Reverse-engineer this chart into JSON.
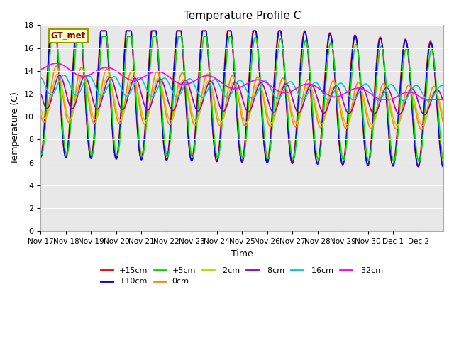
{
  "title": "Temperature Profile C",
  "xlabel": "Time",
  "ylabel": "Temperature (C)",
  "ylim": [
    0,
    18
  ],
  "annotation_text": "GT_met",
  "series": {
    "+15cm": {
      "color": "#ff0000",
      "lw": 1.2
    },
    "+10cm": {
      "color": "#0000ee",
      "lw": 1.2
    },
    "+5cm": {
      "color": "#00dd00",
      "lw": 1.2
    },
    "0cm": {
      "color": "#ff8800",
      "lw": 1.2
    },
    "-2cm": {
      "color": "#cccc00",
      "lw": 1.2
    },
    "-8cm": {
      "color": "#aa00aa",
      "lw": 1.2
    },
    "-16cm": {
      "color": "#00cccc",
      "lw": 1.2
    },
    "-32cm": {
      "color": "#ff00ff",
      "lw": 1.2
    }
  },
  "legend_order": [
    "+15cm",
    "+10cm",
    "+5cm",
    "0cm",
    "-2cm",
    "-8cm",
    "-16cm",
    "-32cm"
  ],
  "plot_bg_color": "#e8e8e8",
  "x_tick_labels": [
    "Nov 17",
    "Nov 18",
    "Nov 19",
    "Nov 20",
    "Nov 21",
    "Nov 22",
    "Nov 23",
    "Nov 24",
    "Nov 25",
    "Nov 26",
    "Nov 27",
    "Nov 28",
    "Nov 29",
    "Nov 30",
    "Dec 1",
    "Dec 2"
  ],
  "n_days": 16
}
